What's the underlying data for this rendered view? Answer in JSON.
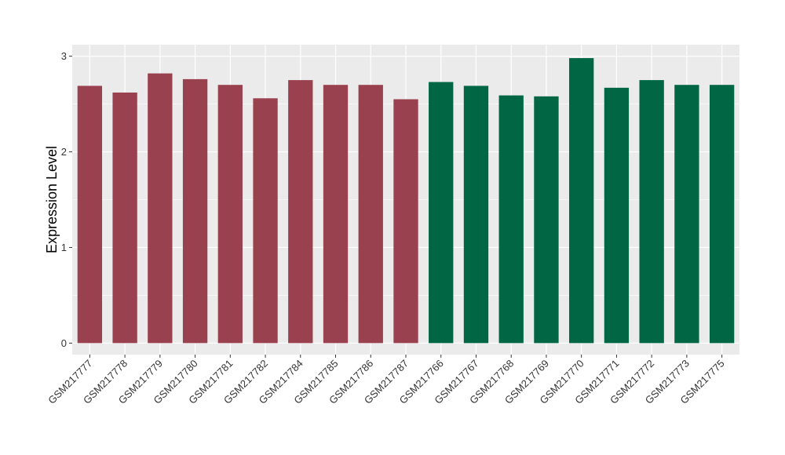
{
  "chart_data": {
    "type": "bar",
    "title": "",
    "xlabel": "",
    "ylabel": "Expression Level",
    "ylim": [
      -0.12,
      3.12
    ],
    "yticks": [
      0,
      1,
      2,
      3
    ],
    "grid": true,
    "legend": "none",
    "colors": {
      "group1": "#9a4150",
      "group2": "#006644",
      "panel": "#ebebeb",
      "grid": "#ffffff"
    },
    "categories": [
      "GSM217777",
      "GSM217778",
      "GSM217779",
      "GSM217780",
      "GSM217781",
      "GSM217782",
      "GSM217784",
      "GSM217785",
      "GSM217786",
      "GSM217787",
      "GSM217766",
      "GSM217767",
      "GSM217768",
      "GSM217769",
      "GSM217770",
      "GSM217771",
      "GSM217772",
      "GSM217773",
      "GSM217775"
    ],
    "values": [
      2.69,
      2.62,
      2.82,
      2.76,
      2.7,
      2.56,
      2.75,
      2.7,
      2.7,
      2.55,
      2.73,
      2.69,
      2.59,
      2.58,
      2.98,
      2.67,
      2.75,
      2.7,
      2.7
    ],
    "groups": [
      "group1",
      "group1",
      "group1",
      "group1",
      "group1",
      "group1",
      "group1",
      "group1",
      "group1",
      "group1",
      "group2",
      "group2",
      "group2",
      "group2",
      "group2",
      "group2",
      "group2",
      "group2",
      "group2"
    ]
  }
}
